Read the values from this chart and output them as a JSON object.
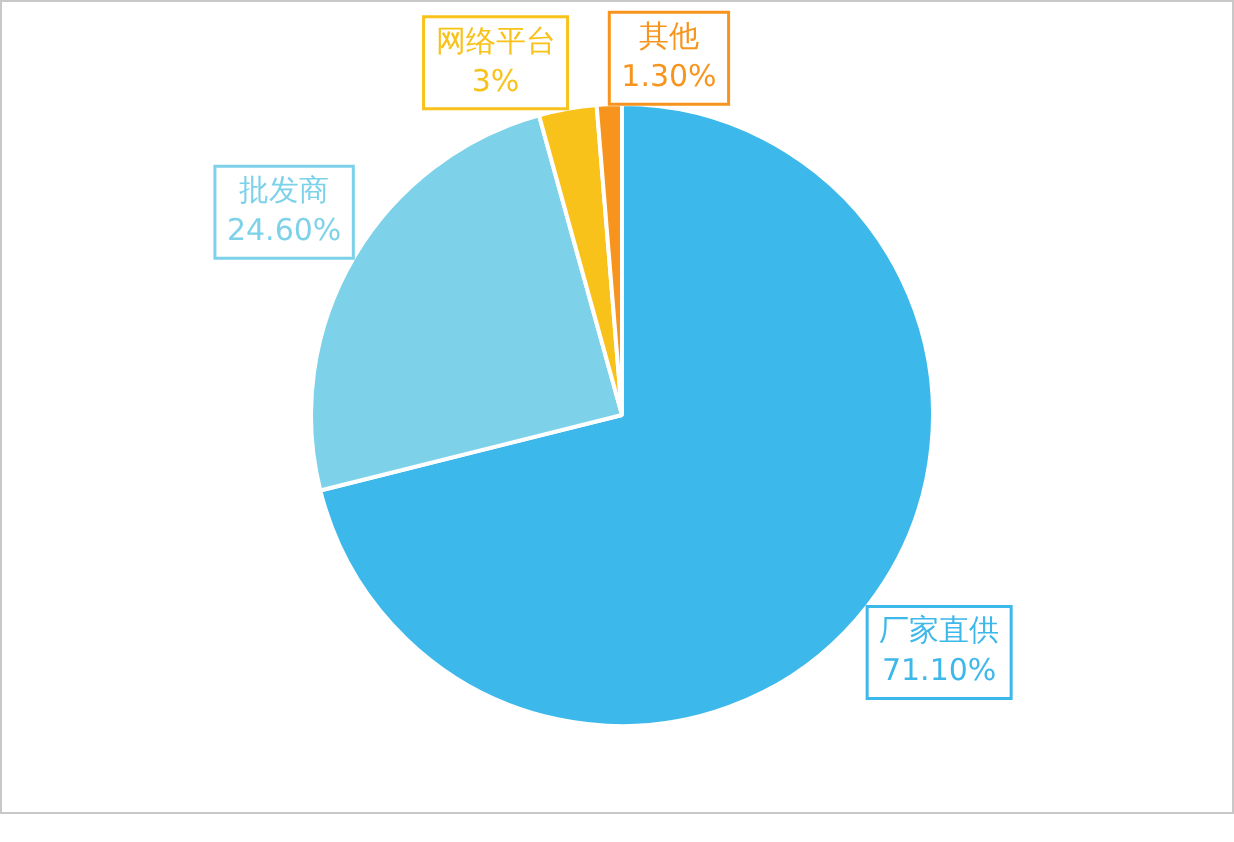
{
  "chart_data": {
    "type": "pie",
    "categories": [
      "厂家直供",
      "批发商",
      "网络平台",
      "其他"
    ],
    "values": [
      71.1,
      24.6,
      3,
      1.3
    ],
    "colors": [
      "#3db8ea",
      "#7dd2ea",
      "#f9c21a",
      "#f7941d"
    ],
    "value_labels": [
      "71.10%",
      "24.60%",
      "3%",
      "1.30%"
    ],
    "legend": false
  }
}
